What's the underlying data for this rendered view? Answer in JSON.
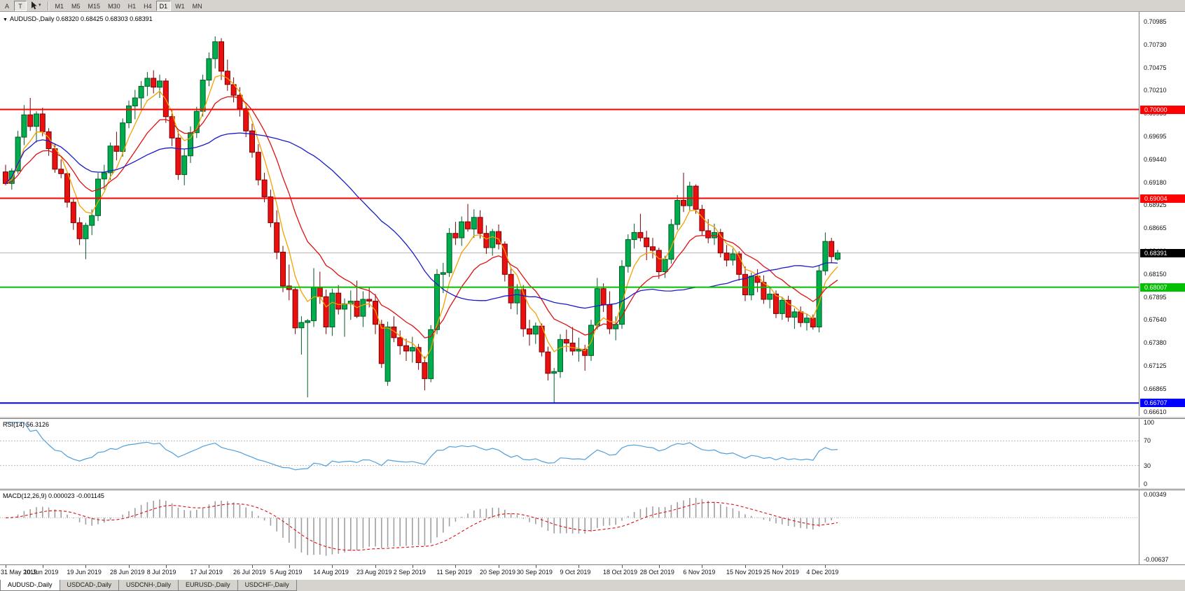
{
  "toolbar": {
    "left_buttons": [
      "A",
      "T"
    ],
    "pointer_tool": {
      "icon": "cursor-icon"
    },
    "timeframes": [
      "M1",
      "M5",
      "M15",
      "M30",
      "H1",
      "H4",
      "D1",
      "W1",
      "MN"
    ],
    "active_timeframe": "D1"
  },
  "header": {
    "symbol": "AUDUSD-,Daily",
    "ohlc": "0.68320 0.68425 0.68303 0.68391"
  },
  "price_axis": {
    "labels": [
      "0.70985",
      "0.70730",
      "0.70475",
      "0.70210",
      "0.69955",
      "0.69695",
      "0.69440",
      "0.69180",
      "0.68925",
      "0.68665",
      "0.68410",
      "0.68150",
      "0.67895",
      "0.67640",
      "0.67380",
      "0.67125",
      "0.66865",
      "0.66610"
    ]
  },
  "objects": {
    "hlines": [
      {
        "price": 0.7,
        "label": "0.70000",
        "color": "#ff0000",
        "width": 2
      },
      {
        "price": 0.69004,
        "label": "0.69004",
        "color": "#ff0000",
        "width": 2
      },
      {
        "price": 0.68007,
        "label": "0.68007",
        "color": "#00c000",
        "width": 2
      },
      {
        "price": 0.66707,
        "label": "0.66707",
        "color": "#0000ff",
        "width": 2
      }
    ],
    "current_price": "0.68391",
    "current_price_line_color": "#b4b4b4",
    "current_price_badge_color": "#000000"
  },
  "rsi_panel": {
    "label": "RSI(14) 56.3126",
    "axis": [
      100,
      70,
      30,
      0
    ],
    "dashed_levels": [
      70,
      30
    ],
    "line_color": "#4f9fdc",
    "period": 14,
    "current_value": 56.3126
  },
  "macd_panel": {
    "label": "MACD(12,26,9) 0.000023 -0.001145",
    "axis_top": "0.00349",
    "axis_bottom": "-0.00637",
    "histogram_color": "#a0a0a0",
    "signal_color": "#e01010",
    "scale_top": 0.00349,
    "scale_bottom": -0.00637,
    "current_values": [
      2.3e-05,
      -0.001145
    ]
  },
  "date_axis": [
    {
      "label": "31 May 2019",
      "i": 0
    },
    {
      "label": "10 Jun 2019",
      "i": 6
    },
    {
      "label": "19 Jun 2019",
      "i": 13
    },
    {
      "label": "28 Jun 2019",
      "i": 20
    },
    {
      "label": "8 Jul 2019",
      "i": 26
    },
    {
      "label": "17 Jul 2019",
      "i": 33
    },
    {
      "label": "26 Jul 2019",
      "i": 40
    },
    {
      "label": "5 Aug 2019",
      "i": 46
    },
    {
      "label": "14 Aug 2019",
      "i": 53
    },
    {
      "label": "23 Aug 2019",
      "i": 60
    },
    {
      "label": "2 Sep 2019",
      "i": 66
    },
    {
      "label": "11 Sep 2019",
      "i": 73
    },
    {
      "label": "20 Sep 2019",
      "i": 80
    },
    {
      "label": "30 Sep 2019",
      "i": 86
    },
    {
      "label": "9 Oct 2019",
      "i": 93
    },
    {
      "label": "18 Oct 2019",
      "i": 100
    },
    {
      "label": "28 Oct 2019",
      "i": 106
    },
    {
      "label": "6 Nov 2019",
      "i": 113
    },
    {
      "label": "15 Nov 2019",
      "i": 120
    },
    {
      "label": "25 Nov 2019",
      "i": 126
    },
    {
      "label": "4 Dec 2019",
      "i": 133
    }
  ],
  "tabs": {
    "items": [
      "AUDUSD-,Daily",
      "USDCAD-,Daily",
      "USDCNH-,Daily",
      "EURUSD-,Daily",
      "USDCHF-,Daily"
    ],
    "active": 0
  },
  "chart_data": {
    "type": "candlestick",
    "symbol": "AUDUSD",
    "timeframe": "Daily",
    "price_range": {
      "top": 0.70985,
      "bottom": 0.6661
    },
    "up_color": "#00ad4e",
    "up_border": "#005c24",
    "down_color": "#ea1010",
    "down_border": "#7a0000",
    "ma": [
      {
        "name": "ma-fast",
        "period": 5,
        "type": "ema",
        "color": "#f5a000"
      },
      {
        "name": "ma-mid",
        "period": 13,
        "type": "ema",
        "color": "#e01010"
      },
      {
        "name": "ma-slow",
        "period": 34,
        "type": "sma",
        "color": "#1a1acd"
      }
    ],
    "ohlc": [
      [
        0.693,
        0.6938,
        0.6915,
        0.6917
      ],
      [
        0.6917,
        0.6934,
        0.691,
        0.6931
      ],
      [
        0.6931,
        0.6976,
        0.6928,
        0.6969
      ],
      [
        0.6969,
        0.7005,
        0.696,
        0.6994
      ],
      [
        0.6994,
        0.7013,
        0.6976,
        0.6981
      ],
      [
        0.6981,
        0.6998,
        0.6963,
        0.6995
      ],
      [
        0.6995,
        0.7002,
        0.697,
        0.6975
      ],
      [
        0.6975,
        0.6979,
        0.6948,
        0.6956
      ],
      [
        0.6956,
        0.6962,
        0.6929,
        0.6933
      ],
      [
        0.6933,
        0.6944,
        0.6923,
        0.6928
      ],
      [
        0.6928,
        0.693,
        0.689,
        0.6896
      ],
      [
        0.6896,
        0.6901,
        0.6865,
        0.6873
      ],
      [
        0.6873,
        0.6879,
        0.6848,
        0.6855
      ],
      [
        0.6855,
        0.6873,
        0.6832,
        0.687
      ],
      [
        0.687,
        0.6888,
        0.6859,
        0.6881
      ],
      [
        0.6881,
        0.6929,
        0.6875,
        0.6922
      ],
      [
        0.6922,
        0.6938,
        0.691,
        0.6929
      ],
      [
        0.6929,
        0.6963,
        0.6921,
        0.6959
      ],
      [
        0.6959,
        0.6975,
        0.6943,
        0.6953
      ],
      [
        0.6953,
        0.699,
        0.6947,
        0.6985
      ],
      [
        0.6985,
        0.701,
        0.6979,
        0.7004
      ],
      [
        0.7004,
        0.7022,
        0.6989,
        0.7013
      ],
      [
        0.7013,
        0.7032,
        0.7001,
        0.7026
      ],
      [
        0.7026,
        0.7042,
        0.7015,
        0.7035
      ],
      [
        0.7035,
        0.7044,
        0.7018,
        0.7025
      ],
      [
        0.7025,
        0.7039,
        0.7013,
        0.7032
      ],
      [
        0.7032,
        0.7035,
        0.6985,
        0.6992
      ],
      [
        0.6992,
        0.6999,
        0.6959,
        0.6968
      ],
      [
        0.6968,
        0.6976,
        0.6921,
        0.6927
      ],
      [
        0.6927,
        0.6956,
        0.6915,
        0.6948
      ],
      [
        0.6948,
        0.6981,
        0.694,
        0.6974
      ],
      [
        0.6974,
        0.7003,
        0.6968,
        0.6998
      ],
      [
        0.6998,
        0.7039,
        0.6992,
        0.7033
      ],
      [
        0.7033,
        0.7064,
        0.7026,
        0.7057
      ],
      [
        0.7057,
        0.7082,
        0.7046,
        0.7076
      ],
      [
        0.7076,
        0.708,
        0.7033,
        0.7043
      ],
      [
        0.7043,
        0.7056,
        0.7021,
        0.7028
      ],
      [
        0.7028,
        0.7036,
        0.7008,
        0.7016
      ],
      [
        0.7016,
        0.7025,
        0.6992,
        0.7001
      ],
      [
        0.7001,
        0.7006,
        0.6969,
        0.6976
      ],
      [
        0.6976,
        0.6984,
        0.6946,
        0.6952
      ],
      [
        0.6952,
        0.6961,
        0.6915,
        0.6921
      ],
      [
        0.6921,
        0.6929,
        0.6896,
        0.6902
      ],
      [
        0.6902,
        0.691,
        0.6868,
        0.6873
      ],
      [
        0.6873,
        0.6887,
        0.6832,
        0.684
      ],
      [
        0.684,
        0.6847,
        0.6795,
        0.6802
      ],
      [
        0.6802,
        0.6826,
        0.6786,
        0.6798
      ],
      [
        0.6798,
        0.6801,
        0.6748,
        0.6755
      ],
      [
        0.6755,
        0.6768,
        0.6725,
        0.6761
      ],
      [
        0.6761,
        0.6765,
        0.6677,
        0.6763
      ],
      [
        0.6763,
        0.6822,
        0.6756,
        0.68
      ],
      [
        0.68,
        0.6818,
        0.6782,
        0.679
      ],
      [
        0.679,
        0.6798,
        0.6748,
        0.6756
      ],
      [
        0.6756,
        0.6799,
        0.6746,
        0.6794
      ],
      [
        0.6794,
        0.6803,
        0.677,
        0.6776
      ],
      [
        0.6776,
        0.6788,
        0.6745,
        0.6782
      ],
      [
        0.6782,
        0.6797,
        0.6764,
        0.6785
      ],
      [
        0.6785,
        0.6808,
        0.6766,
        0.6768
      ],
      [
        0.6768,
        0.6796,
        0.6756,
        0.6787
      ],
      [
        0.6787,
        0.68,
        0.6778,
        0.6785
      ],
      [
        0.6785,
        0.6793,
        0.6748,
        0.6759
      ],
      [
        0.6759,
        0.6764,
        0.671,
        0.6715
      ],
      [
        0.6695,
        0.6762,
        0.669,
        0.6756
      ],
      [
        0.6756,
        0.6768,
        0.6739,
        0.6744
      ],
      [
        0.6744,
        0.6752,
        0.6725,
        0.6735
      ],
      [
        0.6735,
        0.6743,
        0.6718,
        0.6729
      ],
      [
        0.6729,
        0.6745,
        0.6716,
        0.6733
      ],
      [
        0.6733,
        0.6737,
        0.6708,
        0.6716
      ],
      [
        0.6716,
        0.6723,
        0.6685,
        0.6698
      ],
      [
        0.6698,
        0.6758,
        0.6694,
        0.6753
      ],
      [
        0.6753,
        0.6821,
        0.6748,
        0.6815
      ],
      [
        0.6815,
        0.6828,
        0.6794,
        0.6817
      ],
      [
        0.6817,
        0.6867,
        0.6812,
        0.6861
      ],
      [
        0.6861,
        0.6874,
        0.6848,
        0.6856
      ],
      [
        0.6856,
        0.688,
        0.6847,
        0.6874
      ],
      [
        0.6874,
        0.6894,
        0.6863,
        0.6866
      ],
      [
        0.6866,
        0.6888,
        0.6856,
        0.6879
      ],
      [
        0.6879,
        0.6887,
        0.6855,
        0.6861
      ],
      [
        0.6861,
        0.687,
        0.6838,
        0.6845
      ],
      [
        0.6845,
        0.6866,
        0.6836,
        0.6863
      ],
      [
        0.6863,
        0.6871,
        0.6843,
        0.6849
      ],
      [
        0.6849,
        0.6852,
        0.6807,
        0.6815
      ],
      [
        0.6815,
        0.6823,
        0.6776,
        0.6783
      ],
      [
        0.6783,
        0.6804,
        0.677,
        0.6798
      ],
      [
        0.6798,
        0.6803,
        0.6745,
        0.6754
      ],
      [
        0.6754,
        0.6764,
        0.6735,
        0.6748
      ],
      [
        0.6748,
        0.6761,
        0.6737,
        0.6757
      ],
      [
        0.6757,
        0.676,
        0.6723,
        0.6728
      ],
      [
        0.6728,
        0.6734,
        0.6696,
        0.6704
      ],
      [
        0.6704,
        0.671,
        0.6671,
        0.6706
      ],
      [
        0.6706,
        0.6748,
        0.6699,
        0.6742
      ],
      [
        0.6742,
        0.6753,
        0.6728,
        0.6738
      ],
      [
        0.6738,
        0.6756,
        0.6724,
        0.6729
      ],
      [
        0.6729,
        0.6744,
        0.6717,
        0.6731
      ],
      [
        0.6731,
        0.6736,
        0.6707,
        0.6724
      ],
      [
        0.6724,
        0.6764,
        0.6718,
        0.6758
      ],
      [
        0.6758,
        0.6811,
        0.6753,
        0.6799
      ],
      [
        0.6799,
        0.6805,
        0.6773,
        0.6781
      ],
      [
        0.6781,
        0.6796,
        0.6748,
        0.6754
      ],
      [
        0.6754,
        0.6768,
        0.6741,
        0.6759
      ],
      [
        0.6759,
        0.6831,
        0.6754,
        0.6824
      ],
      [
        0.6824,
        0.686,
        0.6817,
        0.6854
      ],
      [
        0.6854,
        0.6872,
        0.6844,
        0.6862
      ],
      [
        0.6862,
        0.6883,
        0.6852,
        0.6856
      ],
      [
        0.6856,
        0.6864,
        0.6831,
        0.6846
      ],
      [
        0.6846,
        0.6856,
        0.6833,
        0.6842
      ],
      [
        0.6842,
        0.6845,
        0.681,
        0.6818
      ],
      [
        0.6818,
        0.6836,
        0.6811,
        0.6832
      ],
      [
        0.6832,
        0.6877,
        0.6827,
        0.6871
      ],
      [
        0.6871,
        0.6904,
        0.6865,
        0.6898
      ],
      [
        0.6898,
        0.6929,
        0.6885,
        0.6892
      ],
      [
        0.6892,
        0.6919,
        0.6887,
        0.6914
      ],
      [
        0.6914,
        0.6916,
        0.6883,
        0.6888
      ],
      [
        0.6888,
        0.6893,
        0.6859,
        0.6864
      ],
      [
        0.6864,
        0.6877,
        0.685,
        0.6856
      ],
      [
        0.6856,
        0.6872,
        0.6848,
        0.6862
      ],
      [
        0.6862,
        0.6866,
        0.6834,
        0.6839
      ],
      [
        0.6839,
        0.6848,
        0.6824,
        0.6831
      ],
      [
        0.6831,
        0.6844,
        0.6825,
        0.6838
      ],
      [
        0.6838,
        0.6841,
        0.6808,
        0.6815
      ],
      [
        0.6815,
        0.6824,
        0.6785,
        0.6792
      ],
      [
        0.6792,
        0.6817,
        0.6786,
        0.6813
      ],
      [
        0.6813,
        0.6821,
        0.6795,
        0.6806
      ],
      [
        0.6806,
        0.6814,
        0.6782,
        0.6787
      ],
      [
        0.6787,
        0.68,
        0.6777,
        0.6793
      ],
      [
        0.6793,
        0.6797,
        0.6766,
        0.6771
      ],
      [
        0.6771,
        0.679,
        0.6764,
        0.6786
      ],
      [
        0.6786,
        0.6791,
        0.6762,
        0.6767
      ],
      [
        0.6767,
        0.6777,
        0.6754,
        0.6773
      ],
      [
        0.6773,
        0.6779,
        0.6756,
        0.6761
      ],
      [
        0.6761,
        0.6771,
        0.6752,
        0.6766
      ],
      [
        0.6766,
        0.677,
        0.6753,
        0.6756
      ],
      [
        0.6756,
        0.6825,
        0.675,
        0.6819
      ],
      [
        0.6819,
        0.6862,
        0.6814,
        0.6852
      ],
      [
        0.6852,
        0.6856,
        0.6828,
        0.6835
      ],
      [
        0.6832,
        0.68425,
        0.68303,
        0.68391
      ]
    ]
  }
}
